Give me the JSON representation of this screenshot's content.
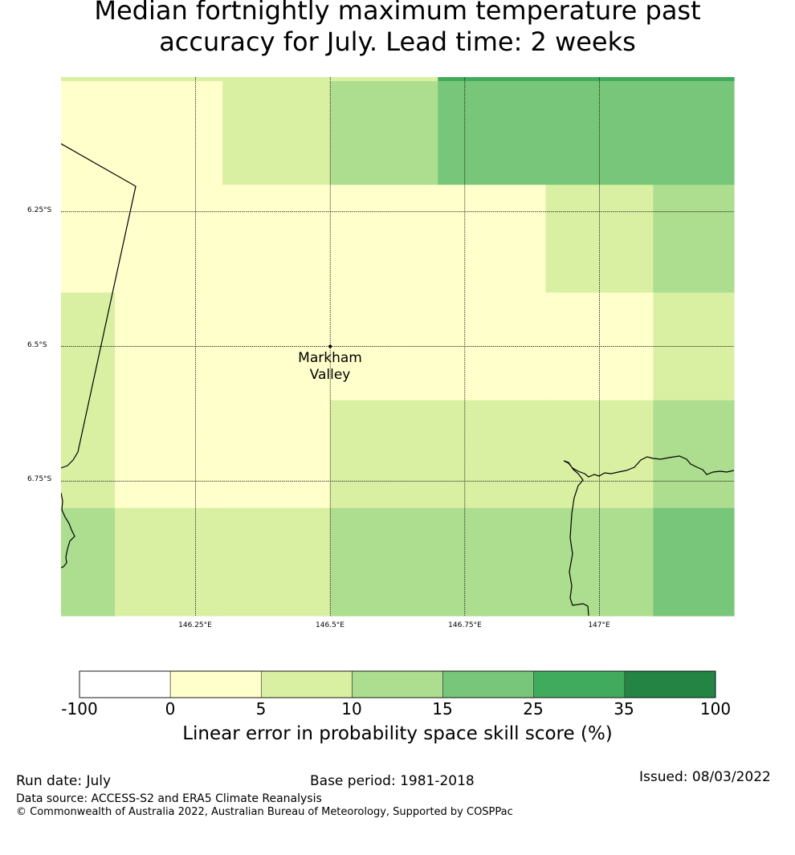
{
  "title_line1": "Median fortnightly maximum temperature past",
  "title_line2": "accuracy for July. Lead time: 2 weeks",
  "map": {
    "lon_range": [
      146.0,
      147.25
    ],
    "lat_range": [
      -6.0,
      -7.0
    ],
    "lat_gridlines": [
      {
        "value": -6.25,
        "label": "6.25°S"
      },
      {
        "value": -6.5,
        "label": "6.5°S"
      },
      {
        "value": -6.75,
        "label": "6.75°S"
      }
    ],
    "lon_gridlines": [
      {
        "value": 146.25,
        "label": "146.25°E"
      },
      {
        "value": 146.5,
        "label": "146.5°E"
      },
      {
        "value": 146.75,
        "label": "146.75°E"
      },
      {
        "value": 147.0,
        "label": "147°E"
      }
    ],
    "place": {
      "name_line1": "Markham",
      "name_line2": "Valley",
      "lon": 146.5,
      "lat": -6.5
    },
    "grid_lon_edges": [
      146.0,
      146.1,
      146.3,
      146.5,
      146.7,
      146.9,
      147.1,
      147.25
    ],
    "grid_lat_edges": [
      -6.0,
      -6.2,
      -6.4,
      -6.6,
      -6.8,
      -7.0
    ],
    "cell_bins": [
      [
        1,
        1,
        2,
        3,
        4,
        4,
        4
      ],
      [
        1,
        1,
        1,
        1,
        1,
        2,
        3
      ],
      [
        2,
        1,
        1,
        1,
        1,
        1,
        2
      ],
      [
        2,
        1,
        1,
        2,
        2,
        2,
        3
      ],
      [
        3,
        2,
        2,
        3,
        3,
        3,
        4
      ]
    ]
  },
  "colorbar": {
    "ticks": [
      "-100",
      "0",
      "5",
      "10",
      "15",
      "25",
      "35",
      "100"
    ],
    "colors": [
      "#ffffff",
      "#ffffcc",
      "#d9f0a3",
      "#addd8e",
      "#78c679",
      "#41ab5d",
      "#238443"
    ],
    "label": "Linear error in probability space skill score (%)"
  },
  "footer": {
    "run_date": "Run date: July",
    "base_period": "Base period: 1981-2018",
    "issued": "Issued: 08/03/2022",
    "data_source": "Data source: ACCESS-S2 and ERA5 Climate Reanalysis",
    "copyright": "© Commonwealth of Australia 2022, Australian Bureau of Meteorology, Supported by COSPPac"
  }
}
